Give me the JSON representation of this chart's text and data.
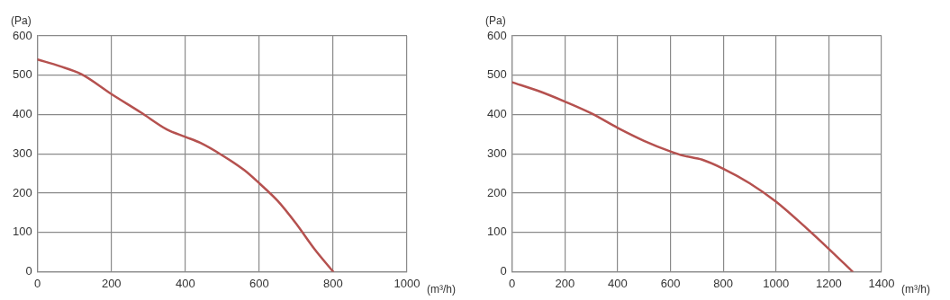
{
  "chart_data": [
    {
      "type": "line",
      "xlabel": "(m³/h)",
      "ylabel": "(Pa)",
      "xlim": [
        0,
        1000
      ],
      "xticks": [
        0,
        200,
        400,
        600,
        800,
        1000
      ],
      "ylim": [
        0,
        600
      ],
      "yticks": [
        0,
        100,
        200,
        300,
        400,
        500,
        600
      ],
      "grid": true,
      "marker": "none",
      "line_style": "solid",
      "series": [
        {
          "color": "#b5514f",
          "x": [
            0,
            60,
            120,
            200,
            280,
            350,
            400,
            440,
            500,
            560,
            600,
            650,
            700,
            750,
            800
          ],
          "values": [
            540,
            523,
            502,
            452,
            405,
            362,
            343,
            328,
            296,
            258,
            225,
            180,
            122,
            57,
            0
          ]
        }
      ]
    },
    {
      "type": "line",
      "xlabel": "(m³/h)",
      "ylabel": "(Pa)",
      "xlim": [
        0,
        1400
      ],
      "xticks": [
        0,
        200,
        400,
        600,
        800,
        1000,
        1200,
        1400
      ],
      "ylim": [
        0,
        600
      ],
      "yticks": [
        0,
        100,
        200,
        300,
        400,
        500,
        600
      ],
      "grid": true,
      "marker": "none",
      "line_style": "solid",
      "series": [
        {
          "color": "#b5514f",
          "x": [
            0,
            100,
            200,
            300,
            400,
            500,
            600,
            650,
            720,
            800,
            900,
            1000,
            1100,
            1200,
            1290
          ],
          "values": [
            482,
            460,
            433,
            403,
            366,
            333,
            306,
            295,
            285,
            262,
            225,
            178,
            120,
            58,
            0
          ]
        }
      ]
    }
  ]
}
